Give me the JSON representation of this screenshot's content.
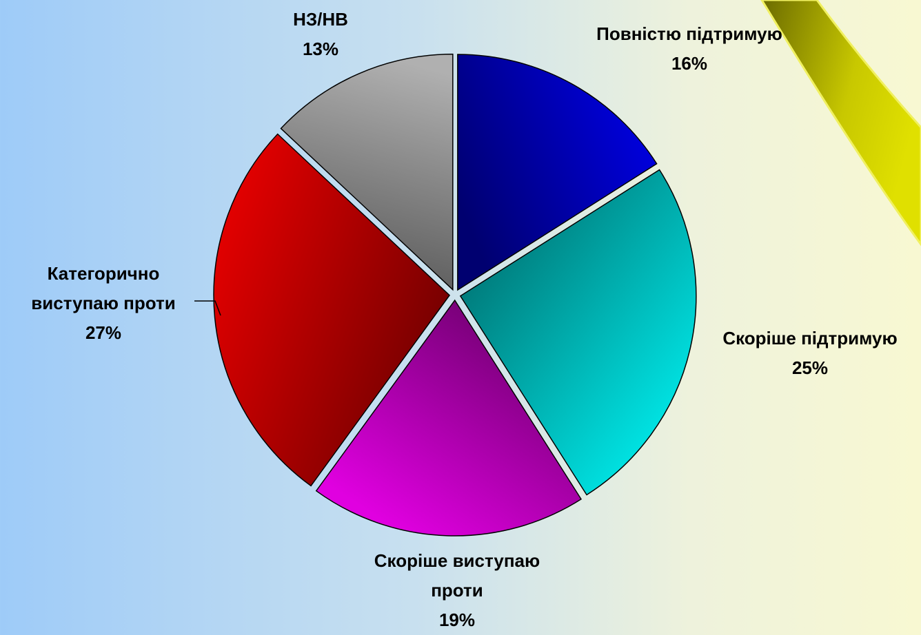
{
  "chart_data": {
    "type": "pie",
    "categories": [
      "Повністю підтримую",
      "Скоріше підтримую",
      "Скоріше виступаю проти",
      "Категорично виступаю проти",
      "НЗ/НВ"
    ],
    "values": [
      16,
      25,
      19,
      27,
      13
    ],
    "value_labels": [
      "16%",
      "25%",
      "19%",
      "27%",
      "13%"
    ],
    "colors": [
      "#0000e0",
      "#00e8e8",
      "#e000e0",
      "#e00000",
      "#b0b0b0"
    ]
  }
}
